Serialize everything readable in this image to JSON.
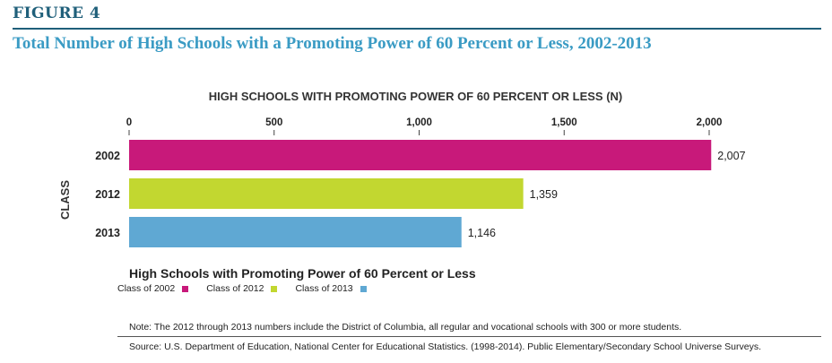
{
  "figure": {
    "label": "FIGURE 4",
    "title": "Total Number of High Schools with a Promoting Power of 60 Percent or Less, 2002-2013",
    "accent_color": "#1f5f7a",
    "title_color": "#3a9bc4"
  },
  "chart_data": {
    "type": "bar",
    "orientation": "horizontal",
    "title": "HIGH SCHOOLS WITH PROMOTING POWER OF 60 PERCENT OR LESS (N)",
    "xlabel": "HIGH SCHOOLS WITH PROMOTING POWER OF 60 PERCENT OR LESS (N)",
    "ylabel": "CLASS",
    "categories": [
      "2002",
      "2012",
      "2013"
    ],
    "values": [
      2007,
      1359,
      1146
    ],
    "data_labels": [
      "2,007",
      "1,359",
      "1,146"
    ],
    "colors": [
      "#c8197a",
      "#c2d730",
      "#5fa8d3"
    ],
    "xlim": [
      0,
      2000
    ],
    "x_ticks": [
      0,
      500,
      1000,
      1500,
      2000
    ],
    "x_tick_labels": [
      "0",
      "500",
      "1,000",
      "1,500",
      "2,000"
    ],
    "axis_position": "top",
    "grid": false,
    "legend_placement": "bottom-left"
  },
  "legend": {
    "title": "High Schools with Promoting Power of 60 Percent or Less",
    "items": [
      {
        "label": "Class of 2002",
        "color": "#c8197a"
      },
      {
        "label": "Class of 2012",
        "color": "#c2d730"
      },
      {
        "label": "Class of 2013",
        "color": "#5fa8d3"
      }
    ]
  },
  "note": "Note: The 2012 through 2013 numbers include the District of Columbia, all regular and vocational schools with 300 or more students.",
  "source": "Source: U.S. Department of Education, National Center for Educational Statistics. (1998-2014). Public Elementary/Secondary School Universe Surveys."
}
